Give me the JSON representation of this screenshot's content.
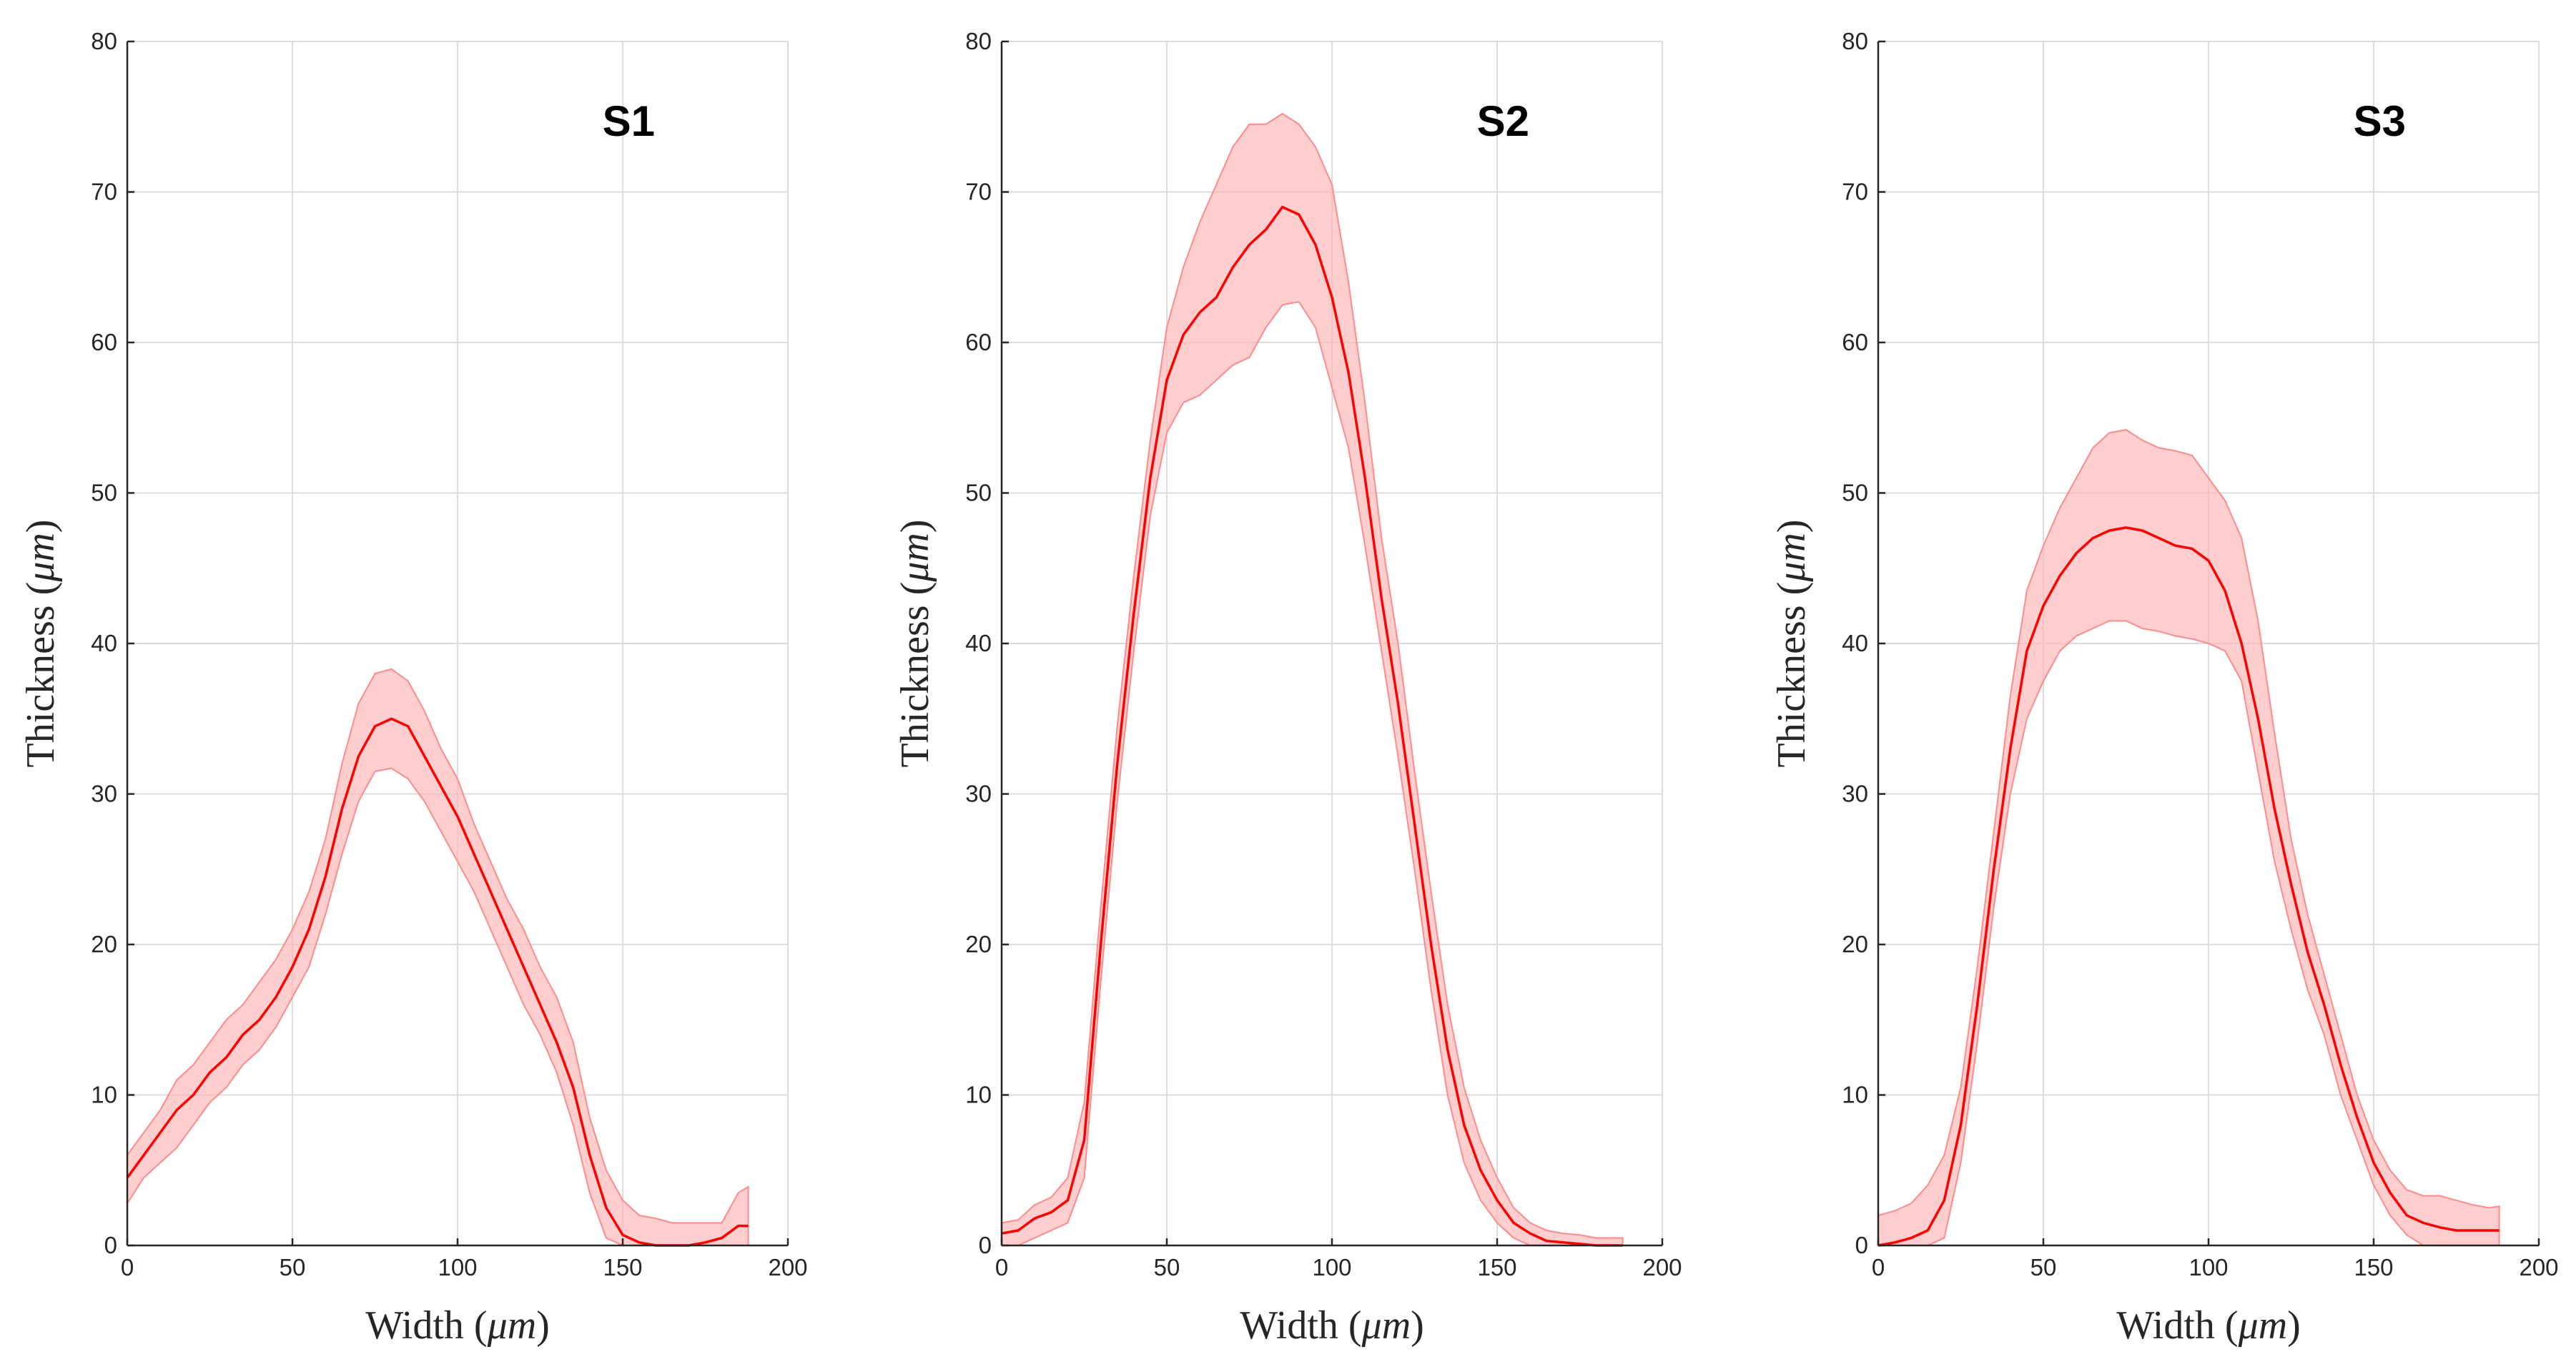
{
  "chart_data": [
    {
      "type": "line",
      "title": "S1",
      "xlabel": "Width",
      "ylabel": "Thickness",
      "unit": "μm",
      "xlim": [
        0,
        200
      ],
      "ylim": [
        0,
        80
      ],
      "xticks": [
        0,
        50,
        100,
        150,
        200
      ],
      "yticks": [
        0,
        10,
        20,
        30,
        40,
        50,
        60,
        70,
        80
      ],
      "grid": true,
      "colors": {
        "line": "#ff0000",
        "band": "#ffb3b3"
      },
      "series": [
        {
          "name": "mean",
          "x": [
            0,
            5,
            10,
            15,
            20,
            25,
            30,
            35,
            40,
            45,
            50,
            55,
            60,
            65,
            70,
            75,
            80,
            85,
            90,
            95,
            100,
            105,
            110,
            115,
            120,
            125,
            130,
            135,
            140,
            145,
            150,
            155,
            160,
            165,
            170,
            175,
            180,
            185,
            188
          ],
          "y": [
            4.5,
            6,
            7.5,
            9,
            10,
            11.5,
            12.5,
            14,
            15,
            16.5,
            18.5,
            21,
            24.5,
            29,
            32.5,
            34.5,
            35,
            34.5,
            32.5,
            30.5,
            28.5,
            26,
            23.5,
            21,
            18.5,
            16,
            13.5,
            10.5,
            6,
            2.5,
            0.7,
            0.2,
            0,
            0,
            0,
            0.2,
            0.5,
            1.3,
            1.3
          ]
        },
        {
          "name": "upper",
          "x": [
            0,
            5,
            10,
            15,
            20,
            25,
            30,
            35,
            40,
            45,
            50,
            55,
            60,
            65,
            70,
            75,
            80,
            85,
            90,
            95,
            100,
            105,
            110,
            115,
            120,
            125,
            130,
            135,
            140,
            145,
            150,
            155,
            160,
            165,
            170,
            175,
            180,
            185,
            188
          ],
          "y": [
            6,
            7.5,
            9,
            11,
            12,
            13.5,
            15,
            16,
            17.5,
            19,
            21,
            23.5,
            27,
            32,
            36,
            38,
            38.3,
            37.5,
            35.5,
            33,
            31,
            28,
            25.5,
            23,
            21,
            18.5,
            16.5,
            13.5,
            8.5,
            5,
            3,
            2,
            1.8,
            1.5,
            1.5,
            1.5,
            1.5,
            3.5,
            3.9
          ]
        },
        {
          "name": "lower",
          "x": [
            0,
            5,
            10,
            15,
            20,
            25,
            30,
            35,
            40,
            45,
            50,
            55,
            60,
            65,
            70,
            75,
            80,
            85,
            90,
            95,
            100,
            105,
            110,
            115,
            120,
            125,
            130,
            135,
            140,
            145,
            150,
            155,
            160,
            165,
            170,
            175,
            180,
            185,
            188
          ],
          "y": [
            2.8,
            4.5,
            5.5,
            6.5,
            8,
            9.5,
            10.5,
            12,
            13,
            14.5,
            16.5,
            18.5,
            22,
            26,
            29.5,
            31.5,
            31.7,
            31,
            29.5,
            27.5,
            25.5,
            23.5,
            21,
            18.5,
            16,
            14,
            11.5,
            8,
            3.5,
            0.5,
            0,
            0,
            0,
            0,
            0,
            0,
            0,
            0,
            0
          ]
        }
      ]
    },
    {
      "type": "line",
      "title": "S2",
      "xlabel": "Width",
      "ylabel": "Thickness",
      "unit": "μm",
      "xlim": [
        0,
        200
      ],
      "ylim": [
        0,
        80
      ],
      "xticks": [
        0,
        50,
        100,
        150,
        200
      ],
      "yticks": [
        0,
        10,
        20,
        30,
        40,
        50,
        60,
        70,
        80
      ],
      "grid": true,
      "colors": {
        "line": "#ff0000",
        "band": "#ffb3b3"
      },
      "series": [
        {
          "name": "mean",
          "x": [
            0,
            5,
            10,
            15,
            20,
            25,
            30,
            35,
            40,
            45,
            50,
            55,
            60,
            65,
            70,
            75,
            80,
            85,
            90,
            95,
            100,
            105,
            110,
            115,
            120,
            125,
            130,
            135,
            140,
            145,
            150,
            155,
            160,
            165,
            170,
            175,
            180,
            185,
            188
          ],
          "y": [
            0.8,
            1,
            1.8,
            2.2,
            3,
            7,
            20,
            32,
            42,
            51,
            57.5,
            60.5,
            62,
            63,
            65,
            66.5,
            67.5,
            69,
            68.5,
            66.5,
            63,
            58,
            51,
            43,
            36,
            28,
            20,
            13,
            8,
            5,
            3,
            1.5,
            0.8,
            0.3,
            0.2,
            0.1,
            0,
            0,
            0
          ]
        },
        {
          "name": "upper",
          "x": [
            0,
            5,
            10,
            15,
            20,
            25,
            30,
            35,
            40,
            45,
            50,
            55,
            60,
            65,
            70,
            75,
            80,
            85,
            90,
            95,
            100,
            105,
            110,
            115,
            120,
            125,
            130,
            135,
            140,
            145,
            150,
            155,
            160,
            165,
            170,
            175,
            180,
            185,
            188
          ],
          "y": [
            1.5,
            1.7,
            2.7,
            3.2,
            4.5,
            9.5,
            22.5,
            34.5,
            44.5,
            53.5,
            61,
            65,
            68,
            70.5,
            73,
            74.5,
            74.5,
            75.2,
            74.5,
            73,
            70.5,
            64,
            56,
            47,
            40,
            31.5,
            23.5,
            16,
            10.5,
            7,
            4.5,
            2.5,
            1.5,
            1,
            0.8,
            0.7,
            0.5,
            0.5,
            0.5
          ]
        },
        {
          "name": "lower",
          "x": [
            0,
            5,
            10,
            15,
            20,
            25,
            30,
            35,
            40,
            45,
            50,
            55,
            60,
            65,
            70,
            75,
            80,
            85,
            90,
            95,
            100,
            105,
            110,
            115,
            120,
            125,
            130,
            135,
            140,
            145,
            150,
            155,
            160,
            165,
            170,
            175,
            180,
            185,
            188
          ],
          "y": [
            0,
            0,
            0.5,
            1,
            1.5,
            4.5,
            17.5,
            29.5,
            39.5,
            48.5,
            54,
            56,
            56.5,
            57.5,
            58.5,
            59,
            61,
            62.5,
            62.7,
            61,
            57,
            53,
            46.5,
            39.5,
            32.5,
            25,
            17,
            10,
            5.5,
            3,
            1.5,
            0.5,
            0,
            0,
            0,
            0,
            0,
            0,
            0
          ]
        }
      ]
    },
    {
      "type": "line",
      "title": "S3",
      "xlabel": "Width",
      "ylabel": "Thickness",
      "unit": "μm",
      "xlim": [
        0,
        200
      ],
      "ylim": [
        0,
        80
      ],
      "xticks": [
        0,
        50,
        100,
        150,
        200
      ],
      "yticks": [
        0,
        10,
        20,
        30,
        40,
        50,
        60,
        70,
        80
      ],
      "grid": true,
      "colors": {
        "line": "#ff0000",
        "band": "#ffb3b3"
      },
      "series": [
        {
          "name": "mean",
          "x": [
            0,
            5,
            10,
            15,
            20,
            25,
            30,
            35,
            40,
            45,
            50,
            55,
            60,
            65,
            70,
            75,
            80,
            85,
            90,
            95,
            100,
            105,
            110,
            115,
            120,
            125,
            130,
            135,
            140,
            145,
            150,
            155,
            160,
            165,
            170,
            175,
            180,
            185,
            188
          ],
          "y": [
            0,
            0.2,
            0.5,
            1,
            3,
            8,
            16,
            25,
            33,
            39.5,
            42.5,
            44.5,
            46,
            47,
            47.5,
            47.7,
            47.5,
            47,
            46.5,
            46.3,
            45.5,
            43.5,
            40,
            35,
            29,
            24,
            19.5,
            16,
            12,
            8.5,
            5.5,
            3.5,
            2,
            1.5,
            1.2,
            1,
            1,
            1,
            1
          ]
        },
        {
          "name": "upper",
          "x": [
            0,
            5,
            10,
            15,
            20,
            25,
            30,
            35,
            40,
            45,
            50,
            55,
            60,
            65,
            70,
            75,
            80,
            85,
            90,
            95,
            100,
            105,
            110,
            115,
            120,
            125,
            130,
            135,
            140,
            145,
            150,
            155,
            160,
            165,
            170,
            175,
            180,
            185,
            188
          ],
          "y": [
            2,
            2.3,
            2.8,
            4,
            6,
            10.5,
            18.5,
            27.5,
            36.5,
            43.5,
            46.5,
            49,
            51,
            53,
            54,
            54.2,
            53.5,
            53,
            52.8,
            52.5,
            51,
            49.5,
            47,
            41.5,
            34,
            27,
            22,
            18,
            14,
            10,
            7,
            5,
            3.7,
            3.3,
            3.3,
            3,
            2.7,
            2.5,
            2.6
          ]
        },
        {
          "name": "lower",
          "x": [
            0,
            5,
            10,
            15,
            20,
            25,
            30,
            35,
            40,
            45,
            50,
            55,
            60,
            65,
            70,
            75,
            80,
            85,
            90,
            95,
            100,
            105,
            110,
            115,
            120,
            125,
            130,
            135,
            140,
            145,
            150,
            155,
            160,
            165,
            170,
            175,
            180,
            185,
            188
          ],
          "y": [
            0,
            0,
            0,
            0,
            0.5,
            5.5,
            13.5,
            22.5,
            30,
            35,
            37.5,
            39.5,
            40.5,
            41,
            41.5,
            41.5,
            41,
            40.8,
            40.5,
            40.3,
            40,
            39.5,
            37.5,
            31.5,
            25.5,
            21,
            17,
            14,
            10,
            7,
            4,
            2,
            0.7,
            0,
            0,
            0,
            0,
            0,
            0
          ]
        }
      ]
    }
  ]
}
